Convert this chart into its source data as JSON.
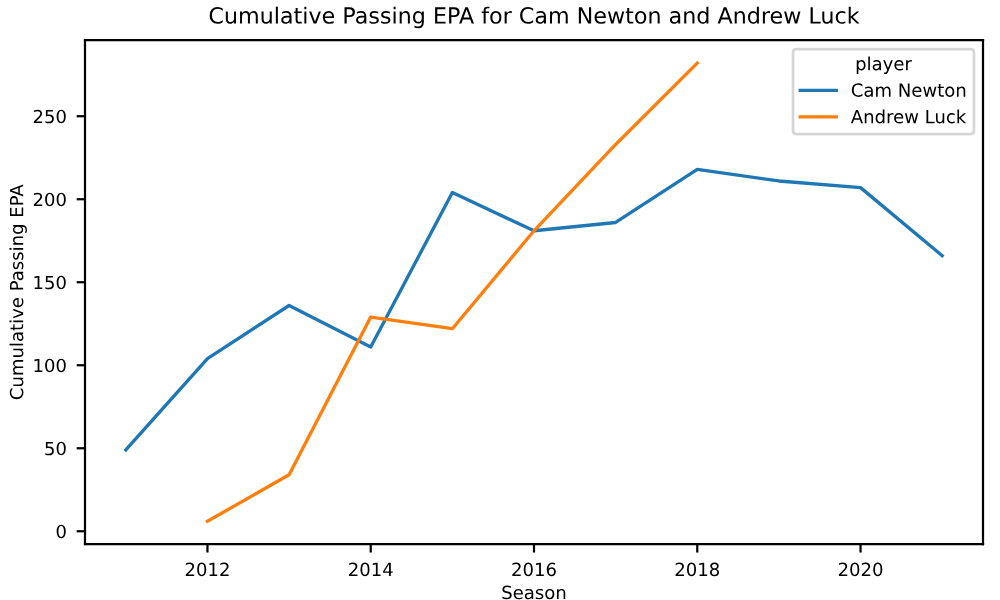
{
  "chart_data": {
    "type": "line",
    "title": "Cumulative Passing EPA for Cam Newton and Andrew Luck",
    "xlabel": "Season",
    "ylabel": "Cumulative Passing EPA",
    "legend_title": "player",
    "legend": "top right",
    "grid": false,
    "series": [
      {
        "name": "Cam Newton",
        "color": "#1f77b4",
        "x": [
          2011,
          2012,
          2013,
          2014,
          2015,
          2016,
          2017,
          2018,
          2019,
          2020,
          2021
        ],
        "values": [
          49,
          104,
          136,
          111,
          204,
          181,
          186,
          218,
          211,
          207,
          166
        ]
      },
      {
        "name": "Andrew Luck",
        "color": "#ff7f0e",
        "x": [
          2012,
          2013,
          2014,
          2015,
          2016,
          2017,
          2018
        ],
        "values": [
          6,
          34,
          129,
          122,
          181,
          233,
          282
        ]
      }
    ],
    "xlim": [
      2010.5,
      2021.5
    ],
    "xticks": [
      2012,
      2014,
      2016,
      2018,
      2020
    ],
    "ylim": [
      -7.8,
      295.8
    ],
    "yticks": [
      0,
      50,
      100,
      150,
      200,
      250
    ]
  }
}
